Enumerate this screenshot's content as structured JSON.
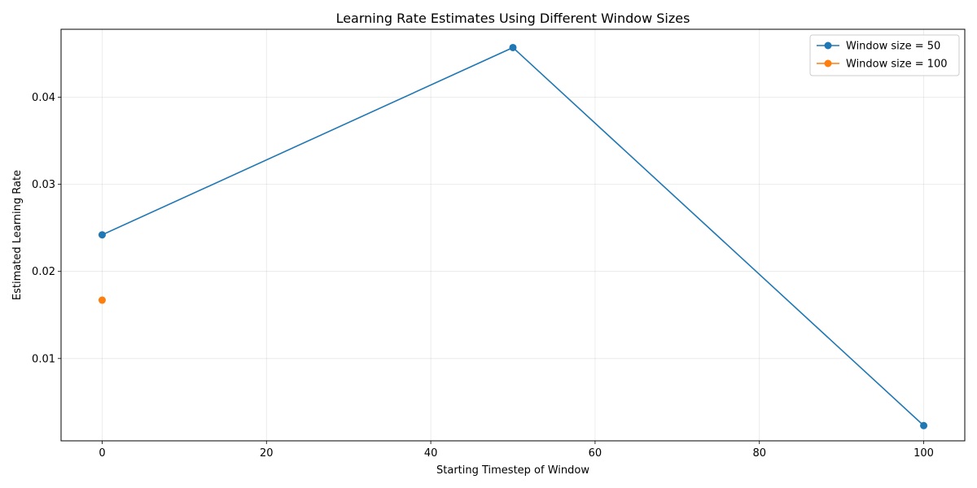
{
  "chart_data": {
    "type": "line",
    "title": "Learning Rate Estimates Using Different Window Sizes",
    "xlabel": "Starting Timestep of Window",
    "ylabel": "Estimated Learning Rate",
    "xlim": [
      -5,
      105
    ],
    "ylim": [
      0.00055,
      0.0478
    ],
    "xticks": [
      0,
      20,
      40,
      60,
      80,
      100
    ],
    "xtick_labels": [
      "0",
      "20",
      "40",
      "60",
      "80",
      "100"
    ],
    "yticks": [
      0.01,
      0.02,
      0.03,
      0.04
    ],
    "ytick_labels": [
      "0.01",
      "0.02",
      "0.03",
      "0.04"
    ],
    "grid": true,
    "legend_position": "top-right",
    "series": [
      {
        "name": "Window size = 50",
        "color": "#1f77b4",
        "x": [
          0,
          50,
          100
        ],
        "y": [
          0.0242,
          0.0457,
          0.0023
        ]
      },
      {
        "name": "Window size = 100",
        "color": "#ff7f0e",
        "x": [
          0
        ],
        "y": [
          0.0167
        ]
      }
    ]
  }
}
